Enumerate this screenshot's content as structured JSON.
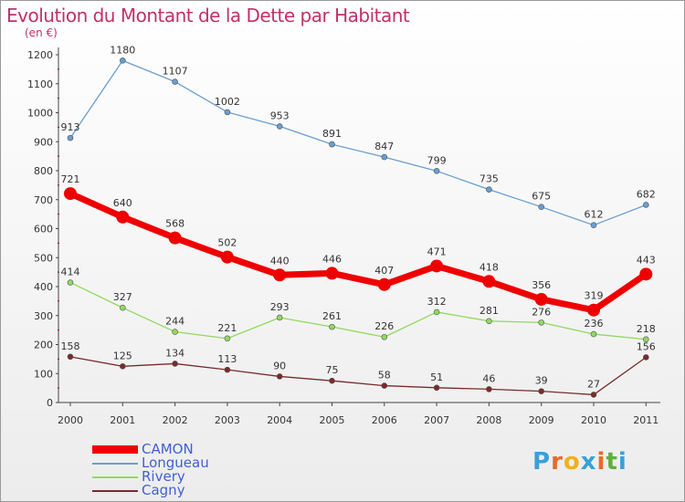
{
  "title": "Evolution du Montant de la Dette par Habitant",
  "subtitle": "(en €)",
  "logo": {
    "text": "Proxiti",
    "colors": [
      "#3aa0d8",
      "#e86a2a",
      "#f0b020",
      "#3aa0d8",
      "#e86a2a",
      "#60b040",
      "#3aa0d8"
    ]
  },
  "chart_data": {
    "type": "line",
    "title": "Evolution du Montant de la Dette par Habitant",
    "subtitle": "(en €)",
    "x": [
      "2000",
      "2001",
      "2002",
      "2003",
      "2004",
      "2005",
      "2006",
      "2007",
      "2008",
      "2009",
      "2010",
      "2011"
    ],
    "yticks": [
      "0",
      "100",
      "200",
      "300",
      "400",
      "500",
      "600",
      "700",
      "800",
      "900",
      "1000",
      "1100",
      "1200"
    ],
    "ylim": [
      0,
      1200
    ],
    "grid": false,
    "legend_position": "bottom-left",
    "series": [
      {
        "name": "CAMON",
        "color": "#ee0000",
        "values": [
          721,
          640,
          568,
          502,
          440,
          446,
          407,
          471,
          418,
          356,
          319,
          443
        ]
      },
      {
        "name": "Longueau",
        "color": "#6a9ed0",
        "values": [
          913,
          1180,
          1107,
          1002,
          953,
          891,
          847,
          799,
          735,
          675,
          612,
          682
        ]
      },
      {
        "name": "Rivery",
        "color": "#90d860",
        "values": [
          414,
          327,
          244,
          221,
          293,
          261,
          226,
          312,
          281,
          276,
          236,
          218
        ]
      },
      {
        "name": "Cagny",
        "color": "#7a2a2a",
        "values": [
          158,
          125,
          134,
          113,
          90,
          75,
          58,
          51,
          46,
          39,
          27,
          156
        ]
      }
    ]
  }
}
